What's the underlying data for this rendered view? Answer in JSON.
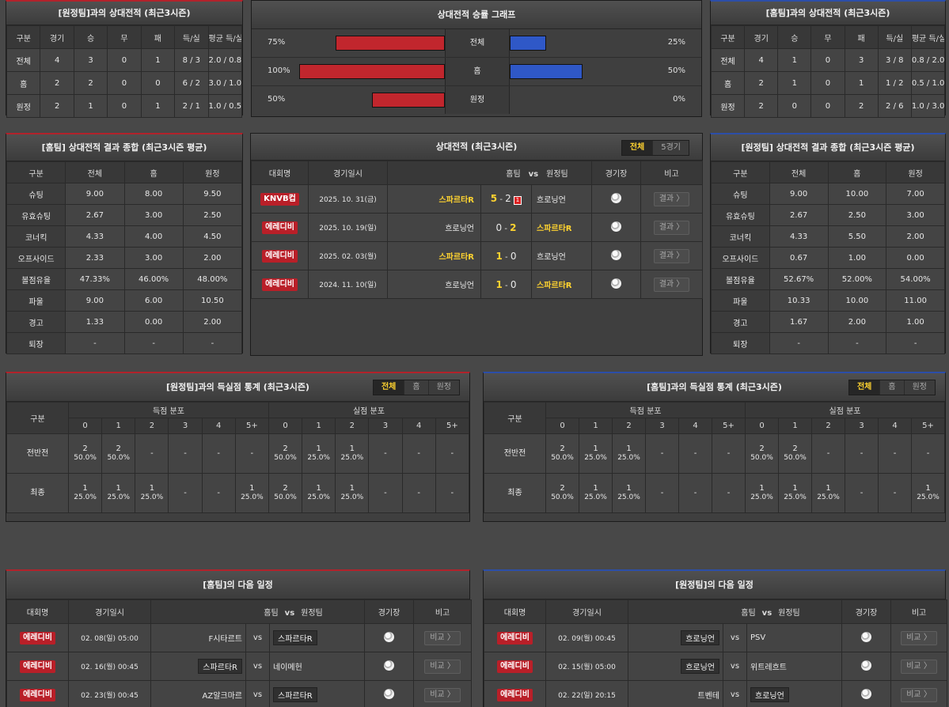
{
  "away_h2h": {
    "title": "[원정팀]과의 상대전적 (최근3시즌)",
    "headers": [
      "구분",
      "경기",
      "승",
      "무",
      "패",
      "득/실",
      "평균 득/실"
    ],
    "rows": [
      [
        "전체",
        "4",
        "3",
        "0",
        "1",
        "8 / 3",
        "2.0 / 0.8"
      ],
      [
        "홈",
        "2",
        "2",
        "0",
        "0",
        "6 / 2",
        "3.0 / 1.0"
      ],
      [
        "원정",
        "2",
        "1",
        "0",
        "1",
        "2 / 1",
        "1.0 / 0.5"
      ]
    ]
  },
  "graph": {
    "title": "상대전적 승률 그래프",
    "rows": [
      {
        "label": "전체",
        "left": "75%",
        "right": "25%",
        "lv": 75,
        "rv": 25
      },
      {
        "label": "홈",
        "left": "100%",
        "right": "50%",
        "lv": 100,
        "rv": 50
      },
      {
        "label": "원정",
        "left": "50%",
        "right": "0%",
        "lv": 50,
        "rv": 0
      }
    ]
  },
  "home_h2h": {
    "title": "[홈팀]과의 상대전적 (최근3시즌)",
    "headers": [
      "구분",
      "경기",
      "승",
      "무",
      "패",
      "득/실",
      "평균 득/실"
    ],
    "rows": [
      [
        "전체",
        "4",
        "1",
        "0",
        "3",
        "3 / 8",
        "0.8 / 2.0"
      ],
      [
        "홈",
        "2",
        "1",
        "0",
        "1",
        "1 / 2",
        "0.5 / 1.0"
      ],
      [
        "원정",
        "2",
        "0",
        "0",
        "2",
        "2 / 6",
        "1.0 / 3.0"
      ]
    ]
  },
  "home_summary": {
    "title": "[홈팀] 상대전적 결과 종합 (최근3시즌 평균)",
    "headers": [
      "구분",
      "전체",
      "홈",
      "원정"
    ],
    "rows": [
      [
        "슈팅",
        "9.00",
        "8.00",
        "9.50"
      ],
      [
        "유효슈팅",
        "2.67",
        "3.00",
        "2.50"
      ],
      [
        "코너킥",
        "4.33",
        "4.00",
        "4.50"
      ],
      [
        "오프사이드",
        "2.33",
        "3.00",
        "2.00"
      ],
      [
        "볼점유율",
        "47.33%",
        "46.00%",
        "48.00%"
      ],
      [
        "파울",
        "9.00",
        "6.00",
        "10.50"
      ],
      [
        "경고",
        "1.33",
        "0.00",
        "2.00"
      ],
      [
        "퇴장",
        "-",
        "-",
        "-"
      ]
    ]
  },
  "matches": {
    "title": "상대전적 (최근3시즌)",
    "tabs": [
      "전체",
      "5경기"
    ],
    "headers": {
      "comp": "대회명",
      "date": "경기일시",
      "home": "홈팀",
      "vs": "vs",
      "away": "원정팀",
      "venue": "경기장",
      "note": "비고"
    },
    "rows": [
      {
        "comp": "KNVB컵",
        "date": "2025. 10. 31(금)",
        "home": "스파르타R",
        "hs": "5",
        "as": "2",
        "away": "흐로닝언",
        "card": "1",
        "btn": "결과 〉"
      },
      {
        "comp": "에레디비",
        "date": "2025. 10. 19(일)",
        "home": "흐로닝언",
        "hs": "0",
        "as": "2",
        "away": "스파르타R",
        "card": "",
        "btn": "결과 〉"
      },
      {
        "comp": "에레디비",
        "date": "2025. 02. 03(월)",
        "home": "스파르타R",
        "hs": "1",
        "as": "0",
        "away": "흐로닝언",
        "card": "",
        "btn": "결과 〉"
      },
      {
        "comp": "에레디비",
        "date": "2024. 11. 10(일)",
        "home": "흐로닝언",
        "hs": "1",
        "as": "0",
        "away": "스파르타R",
        "card": "",
        "btn": "결과 〉"
      }
    ]
  },
  "away_summary": {
    "title": "[원정팀] 상대전적 결과 종합 (최근3시즌 평균)",
    "headers": [
      "구분",
      "전체",
      "홈",
      "원정"
    ],
    "rows": [
      [
        "슈팅",
        "9.00",
        "10.00",
        "7.00"
      ],
      [
        "유효슈팅",
        "2.67",
        "2.50",
        "3.00"
      ],
      [
        "코너킥",
        "4.33",
        "5.50",
        "2.00"
      ],
      [
        "오프사이드",
        "0.67",
        "1.00",
        "0.00"
      ],
      [
        "볼점유율",
        "52.67%",
        "52.00%",
        "54.00%"
      ],
      [
        "파울",
        "10.33",
        "10.00",
        "11.00"
      ],
      [
        "경고",
        "1.67",
        "2.00",
        "1.00"
      ],
      [
        "퇴장",
        "-",
        "-",
        "-"
      ]
    ]
  },
  "goal_labels": {
    "gubun": "구분",
    "scored": "득점 분포",
    "conceded": "실점 분포",
    "cols": [
      "0",
      "1",
      "2",
      "3",
      "4",
      "5+"
    ]
  },
  "away_goals": {
    "title": "[원정팀]과의 득실점 통계 (최근3시즌)",
    "tabs": [
      "전체",
      "홈",
      "원정"
    ],
    "rows": [
      {
        "label": "전반전",
        "cells": [
          [
            "2",
            "50.0%"
          ],
          [
            "2",
            "50.0%"
          ],
          [
            "-",
            ""
          ],
          [
            "-",
            ""
          ],
          [
            "-",
            ""
          ],
          [
            "-",
            ""
          ],
          [
            "2",
            "50.0%"
          ],
          [
            "1",
            "25.0%"
          ],
          [
            "1",
            "25.0%"
          ],
          [
            "-",
            ""
          ],
          [
            "-",
            ""
          ],
          [
            "-",
            ""
          ]
        ]
      },
      {
        "label": "최종",
        "cells": [
          [
            "1",
            "25.0%"
          ],
          [
            "1",
            "25.0%"
          ],
          [
            "1",
            "25.0%"
          ],
          [
            "-",
            ""
          ],
          [
            "-",
            ""
          ],
          [
            "1",
            "25.0%"
          ],
          [
            "2",
            "50.0%"
          ],
          [
            "1",
            "25.0%"
          ],
          [
            "1",
            "25.0%"
          ],
          [
            "-",
            ""
          ],
          [
            "-",
            ""
          ],
          [
            "-",
            ""
          ]
        ]
      }
    ]
  },
  "home_goals": {
    "title": "[홈팀]과의 득실점 통계 (최근3시즌)",
    "tabs": [
      "전체",
      "홈",
      "원정"
    ],
    "rows": [
      {
        "label": "전반전",
        "cells": [
          [
            "2",
            "50.0%"
          ],
          [
            "1",
            "25.0%"
          ],
          [
            "1",
            "25.0%"
          ],
          [
            "-",
            ""
          ],
          [
            "-",
            ""
          ],
          [
            "-",
            ""
          ],
          [
            "2",
            "50.0%"
          ],
          [
            "2",
            "50.0%"
          ],
          [
            "-",
            ""
          ],
          [
            "-",
            ""
          ],
          [
            "-",
            ""
          ],
          [
            "-",
            ""
          ]
        ]
      },
      {
        "label": "최종",
        "cells": [
          [
            "2",
            "50.0%"
          ],
          [
            "1",
            "25.0%"
          ],
          [
            "1",
            "25.0%"
          ],
          [
            "-",
            ""
          ],
          [
            "-",
            ""
          ],
          [
            "-",
            ""
          ],
          [
            "1",
            "25.0%"
          ],
          [
            "1",
            "25.0%"
          ],
          [
            "1",
            "25.0%"
          ],
          [
            "-",
            ""
          ],
          [
            "-",
            ""
          ],
          [
            "1",
            "25.0%"
          ]
        ]
      }
    ]
  },
  "sched_headers": {
    "comp": "대회명",
    "date": "경기일시",
    "home": "홈팀",
    "vs": "vs",
    "away": "원정팀",
    "venue": "경기장",
    "note": "비고"
  },
  "home_next": {
    "title": "[홈팀]의 다음 일정",
    "rows": [
      {
        "comp": "에레디비",
        "date": "02. 08(일) 05:00",
        "home": "F시타르트",
        "away": "스파르타R",
        "hl": "away",
        "btn": "비교 〉"
      },
      {
        "comp": "에레디비",
        "date": "02. 16(월) 00:45",
        "home": "스파르타R",
        "away": "네이메헌",
        "hl": "home",
        "btn": "비교 〉"
      },
      {
        "comp": "에레디비",
        "date": "02. 23(월) 00:45",
        "home": "AZ알크마르",
        "away": "스파르타R",
        "hl": "away",
        "btn": "비교 〉"
      }
    ]
  },
  "away_next": {
    "title": "[원정팀]의 다음 일정",
    "rows": [
      {
        "comp": "에레디비",
        "date": "02. 09(월) 00:45",
        "home": "흐로닝언",
        "away": "PSV",
        "hl": "home",
        "btn": "비교 〉"
      },
      {
        "comp": "에레디비",
        "date": "02. 15(월) 05:00",
        "home": "흐로닝언",
        "away": "위트레흐트",
        "hl": "home",
        "btn": "비교 〉"
      },
      {
        "comp": "에레디비",
        "date": "02. 22(일) 20:15",
        "home": "트벤테",
        "away": "흐로닝언",
        "hl": "away",
        "btn": "비교 〉"
      }
    ]
  },
  "colors": {
    "accent_red": "#b91f28",
    "accent_blue": "#2f58c7",
    "highlight": "#ffd330"
  }
}
